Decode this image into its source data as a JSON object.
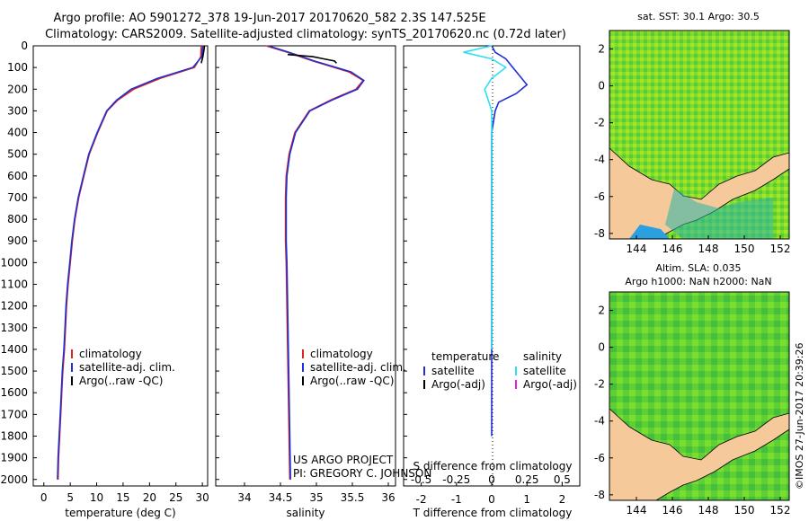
{
  "header": {
    "title_line1": "Argo profile: AO 5901272_378 19-Jun-2017 20170620_582 2.3S 147.525E",
    "title_line2": "Climatology: CARS2009. Satellite-adjusted climatology: synTS_20170620.nc (0.72d later)"
  },
  "credits": {
    "project": "US ARGO PROJECT",
    "pi": "PI: GREGORY C. JOHNSON",
    "timestamp": "©IMOS 27-Jun-2017 20:39:26"
  },
  "colors": {
    "climatology": "#e0241b",
    "satellite": "#1f2fd6",
    "argo_t": "#000000",
    "sat_salinity": "#2ee0f0",
    "argo_s": "#e020e0",
    "land": "#f5c99a"
  },
  "chart_data": [
    {
      "type": "line",
      "panel": "temperature",
      "xlabel": "temperature (deg C)",
      "xlim": [
        -2,
        31
      ],
      "xticks": [
        "0",
        "5",
        "10",
        "15",
        "20",
        "25",
        "30"
      ],
      "ylim": [
        2030,
        0
      ],
      "yticks": [
        "0",
        "100",
        "200",
        "300",
        "400",
        "500",
        "600",
        "700",
        "800",
        "900",
        "1000",
        "1100",
        "1200",
        "1300",
        "1400",
        "1500",
        "1600",
        "1700",
        "1800",
        "1900",
        "2000"
      ],
      "legend": [
        "climatology",
        "satellite-adj. clim.",
        "Argo(..raw -QC)"
      ],
      "series": [
        {
          "name": "climatology",
          "points": [
            [
              29.8,
              0
            ],
            [
              29.7,
              50
            ],
            [
              28.5,
              100
            ],
            [
              22,
              150
            ],
            [
              17,
              200
            ],
            [
              14,
              250
            ],
            [
              12,
              300
            ],
            [
              10.2,
              400
            ],
            [
              8.6,
              500
            ],
            [
              7.6,
              600
            ],
            [
              6.6,
              700
            ],
            [
              5.9,
              800
            ],
            [
              5.4,
              900
            ],
            [
              5.0,
              1000
            ],
            [
              4.6,
              1100
            ],
            [
              4.3,
              1200
            ],
            [
              4.1,
              1300
            ],
            [
              3.9,
              1400
            ],
            [
              3.6,
              1500
            ],
            [
              3.4,
              1600
            ],
            [
              3.2,
              1700
            ],
            [
              3.0,
              1800
            ],
            [
              2.8,
              1900
            ],
            [
              2.7,
              2000
            ]
          ]
        },
        {
          "name": "satellite-adj. clim.",
          "points": [
            [
              30.1,
              0
            ],
            [
              29.9,
              50
            ],
            [
              28.2,
              100
            ],
            [
              21.5,
              150
            ],
            [
              16.5,
              200
            ],
            [
              13.8,
              250
            ],
            [
              11.9,
              300
            ],
            [
              10.1,
              400
            ],
            [
              8.5,
              500
            ],
            [
              7.5,
              600
            ],
            [
              6.5,
              700
            ],
            [
              5.8,
              800
            ],
            [
              5.3,
              900
            ],
            [
              4.9,
              1000
            ],
            [
              4.5,
              1100
            ],
            [
              4.2,
              1200
            ],
            [
              4.0,
              1300
            ],
            [
              3.8,
              1400
            ],
            [
              3.5,
              1500
            ],
            [
              3.3,
              1600
            ],
            [
              3.1,
              1700
            ],
            [
              2.9,
              1800
            ],
            [
              2.7,
              1900
            ],
            [
              2.6,
              2000
            ]
          ]
        },
        {
          "name": "Argo(..raw -QC)",
          "points": [
            [
              30.4,
              0
            ],
            [
              30.3,
              20
            ],
            [
              30.1,
              50
            ],
            [
              29.8,
              80
            ]
          ]
        }
      ]
    },
    {
      "type": "line",
      "panel": "salinity",
      "xlabel": "salinity",
      "xlim": [
        33.6,
        36.1
      ],
      "xticks": [
        "34",
        "34.5",
        "35",
        "35.5",
        "36"
      ],
      "ylim": [
        2030,
        0
      ],
      "legend": [
        "climatology",
        "satellite-adj. clim.",
        "Argo(..raw -QC)"
      ],
      "series": [
        {
          "name": "climatology",
          "points": [
            [
              34.3,
              0
            ],
            [
              34.6,
              30
            ],
            [
              34.95,
              70
            ],
            [
              35.45,
              120
            ],
            [
              35.65,
              160
            ],
            [
              35.55,
              200
            ],
            [
              35.2,
              250
            ],
            [
              34.9,
              300
            ],
            [
              34.7,
              400
            ],
            [
              34.62,
              500
            ],
            [
              34.58,
              600
            ],
            [
              34.57,
              700
            ],
            [
              34.57,
              800
            ],
            [
              34.57,
              900
            ],
            [
              34.58,
              1000
            ],
            [
              34.59,
              1200
            ],
            [
              34.6,
              1400
            ],
            [
              34.61,
              1600
            ],
            [
              34.62,
              1800
            ],
            [
              34.63,
              2000
            ]
          ]
        },
        {
          "name": "satellite-adj. clim.",
          "points": [
            [
              34.33,
              0
            ],
            [
              34.62,
              30
            ],
            [
              34.97,
              70
            ],
            [
              35.48,
              120
            ],
            [
              35.66,
              160
            ],
            [
              35.57,
              200
            ],
            [
              35.22,
              250
            ],
            [
              34.91,
              300
            ],
            [
              34.71,
              400
            ],
            [
              34.63,
              500
            ],
            [
              34.59,
              600
            ],
            [
              34.58,
              700
            ],
            [
              34.58,
              800
            ],
            [
              34.58,
              900
            ],
            [
              34.59,
              1000
            ],
            [
              34.6,
              1200
            ],
            [
              34.61,
              1400
            ],
            [
              34.62,
              1600
            ],
            [
              34.63,
              1800
            ],
            [
              34.64,
              2000
            ]
          ]
        },
        {
          "name": "Argo(..raw -QC)",
          "points": [
            [
              34.6,
              40
            ],
            [
              34.95,
              50
            ],
            [
              35.1,
              60
            ],
            [
              35.25,
              70
            ],
            [
              35.28,
              80
            ]
          ]
        }
      ]
    },
    {
      "type": "line",
      "panel": "difference",
      "xlabel": "T difference from climatology",
      "xlabel2": "S difference from climatology",
      "xlim": [
        -2.5,
        2.5
      ],
      "xticks": [
        "-2",
        "-1",
        "0",
        "1",
        "2"
      ],
      "xticks2": [
        "-0.5",
        "-0.25",
        "0",
        "0.25",
        "0.5"
      ],
      "ylim": [
        2030,
        0
      ],
      "legend_headers": [
        "temperature",
        "salinity"
      ],
      "legend": [
        "satellite",
        "Argo(-adj)",
        "satellite",
        "Argo(-adj)"
      ],
      "series": [
        {
          "name": "satellite",
          "quantity": "temperature",
          "points": [
            [
              0,
              0
            ],
            [
              0.1,
              30
            ],
            [
              0.4,
              60
            ],
            [
              0.6,
              100
            ],
            [
              0.8,
              140
            ],
            [
              1.0,
              180
            ],
            [
              0.7,
              220
            ],
            [
              0.2,
              260
            ],
            [
              0.1,
              300
            ],
            [
              0,
              400
            ],
            [
              0,
              600
            ],
            [
              0,
              1000
            ],
            [
              0,
              1400
            ],
            [
              0,
              1800
            ]
          ]
        },
        {
          "name": "satellite",
          "quantity": "salinity",
          "points": [
            [
              0,
              0
            ],
            [
              -0.2,
              30
            ],
            [
              0,
              60
            ],
            [
              0.1,
              100
            ],
            [
              0,
              150
            ],
            [
              -0.05,
              200
            ],
            [
              0,
              300
            ],
            [
              0,
              500
            ],
            [
              0,
              1000
            ],
            [
              0,
              1400
            ]
          ]
        },
        {
          "name": "Argo(-adj)",
          "quantity": "salinity",
          "points": [
            [
              1.0,
              20
            ],
            [
              1.7,
              40
            ],
            [
              1.2,
              60
            ],
            [
              1.6,
              80
            ]
          ]
        }
      ]
    },
    {
      "type": "heatmap",
      "panel": "sst_map",
      "title": "sat. SST: 30.1  Argo: 30.5",
      "xticks": [
        "144",
        "146",
        "148",
        "150",
        "152"
      ],
      "yticks": [
        "2",
        "0",
        "-2",
        "-4",
        "-6",
        "-8"
      ],
      "xlim": [
        142.5,
        152.5
      ],
      "ylim": [
        -8.3,
        3.0
      ]
    },
    {
      "type": "heatmap",
      "panel": "sla_map",
      "title_line1": "Altim. SLA: 0.035",
      "title_line2": "Argo h1000: NaN h2000: NaN",
      "xticks": [
        "144",
        "146",
        "148",
        "150",
        "152"
      ],
      "yticks": [
        "2",
        "0",
        "-2",
        "-4",
        "-6",
        "-8"
      ],
      "xlim": [
        142.5,
        152.5
      ],
      "ylim": [
        -8.3,
        3.0
      ]
    }
  ]
}
